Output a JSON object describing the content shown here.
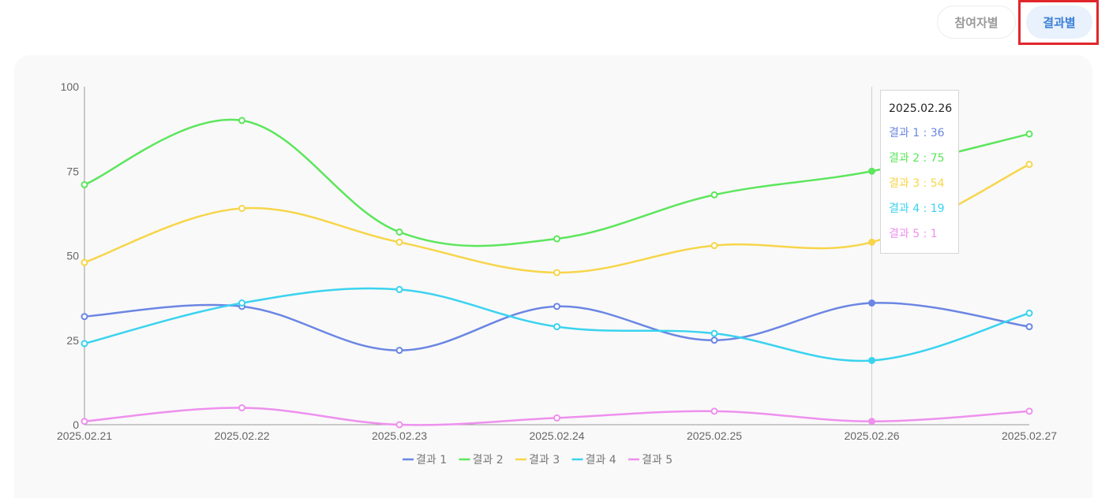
{
  "tabs": [
    {
      "label": "참여자별",
      "selected": false
    },
    {
      "label": "결과별",
      "selected": true
    }
  ],
  "tooltip": {
    "title": "2025.02.26",
    "sep": " : ",
    "rows": [
      {
        "name": "결과 1",
        "value": "36"
      },
      {
        "name": "결과 2",
        "value": "75"
      },
      {
        "name": "결과 3",
        "value": "54"
      },
      {
        "name": "결과 4",
        "value": "19"
      },
      {
        "name": "결과 5",
        "value": "1"
      }
    ]
  },
  "chart_data": {
    "type": "line",
    "x": [
      "2025.02.21",
      "2025.02.22",
      "2025.02.23",
      "2025.02.24",
      "2025.02.25",
      "2025.02.26",
      "2025.02.27"
    ],
    "ylim": [
      0,
      100
    ],
    "yticks": [
      0,
      25,
      50,
      75,
      100
    ],
    "grid": false,
    "legend_position": "bottom",
    "hover_index": 5,
    "series": [
      {
        "name": "결과 1",
        "color": "#6b86e3",
        "values": [
          32,
          35,
          22,
          35,
          25,
          36,
          29
        ]
      },
      {
        "name": "결과 2",
        "color": "#5ce65c",
        "values": [
          71,
          90,
          57,
          55,
          68,
          75,
          86
        ]
      },
      {
        "name": "결과 3",
        "color": "#f7d54a",
        "values": [
          48,
          64,
          54,
          45,
          53,
          54,
          77
        ]
      },
      {
        "name": "결과 4",
        "color": "#3ad3ef",
        "values": [
          24,
          36,
          40,
          29,
          27,
          19,
          33
        ]
      },
      {
        "name": "결과 5",
        "color": "#ee90ee",
        "values": [
          1,
          5,
          0,
          2,
          4,
          1,
          4
        ]
      }
    ]
  }
}
